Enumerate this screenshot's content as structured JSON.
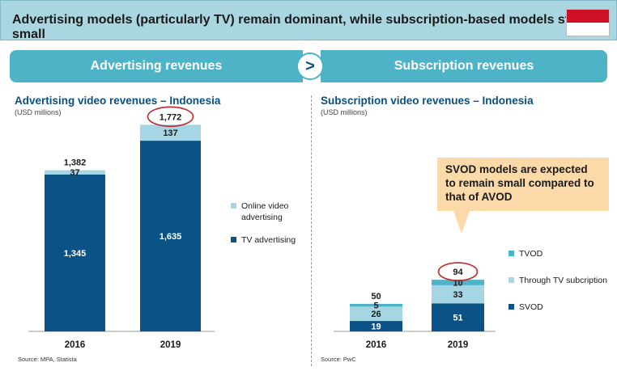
{
  "header": {
    "title": "Advertising models (particularly TV) remain dominant, while subscription-based models stay small",
    "flag": "indonesia-flag"
  },
  "banners": {
    "left": "Advertising revenues",
    "arrow": ">",
    "right": "Subscription revenues"
  },
  "callout": "SVOD models are expected to remain small compared to that of AVOD",
  "colors": {
    "dark_blue": "#0b5287",
    "light_blue": "#a6d6e3",
    "mid_blue": "#4fb3c8",
    "highlight_red": "#c0272d"
  },
  "chart_data": [
    {
      "type": "bar",
      "stacked": true,
      "title": "Advertising video revenues – Indonesia",
      "subtitle": "(USD millions)",
      "source": "Source: MPA, Statista",
      "categories": [
        "2016",
        "2019"
      ],
      "series": [
        {
          "name": "TV advertising",
          "values": [
            1345,
            1635
          ],
          "labels": [
            "1,345",
            "1,635"
          ],
          "color": "#0b5287"
        },
        {
          "name": "Online video advertising",
          "values": [
            37,
            137
          ],
          "labels": [
            "37",
            "137"
          ],
          "color": "#a6d6e3"
        }
      ],
      "totals": [
        "1,382",
        "1,772"
      ],
      "highlighted_total": "2019",
      "legend": [
        "Online video advertising",
        "TV advertising"
      ],
      "ylim": [
        0,
        1900
      ]
    },
    {
      "type": "bar",
      "stacked": true,
      "title": "Subscription video revenues – Indonesia",
      "subtitle": "(USD millions)",
      "source": "Source: PwC",
      "categories": [
        "2016",
        "2019"
      ],
      "series": [
        {
          "name": "SVOD",
          "values": [
            19,
            51
          ],
          "labels": [
            "19",
            "51"
          ],
          "color": "#0b5287"
        },
        {
          "name": "Through TV subcription",
          "values": [
            26,
            33
          ],
          "labels": [
            "26",
            "33"
          ],
          "color": "#a6d6e3"
        },
        {
          "name": "TVOD",
          "values": [
            5,
            10
          ],
          "labels": [
            "5",
            "10"
          ],
          "color": "#4fb3c8"
        }
      ],
      "totals": [
        "50",
        "94"
      ],
      "highlighted_total": "2019",
      "legend": [
        "TVOD",
        "Through TV subcription",
        "SVOD"
      ],
      "ylim": [
        0,
        100
      ]
    }
  ]
}
